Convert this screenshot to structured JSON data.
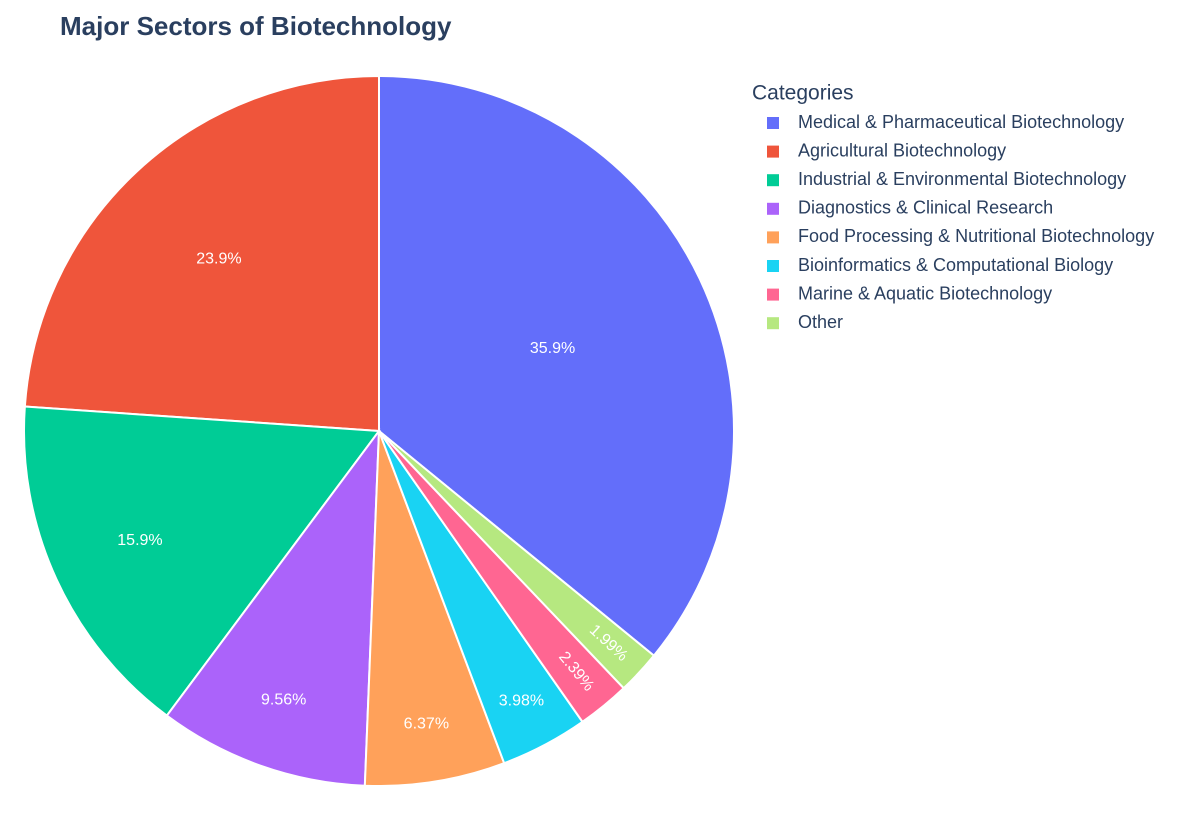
{
  "chart_data": {
    "type": "pie",
    "title": "Major Sectors of Biotechnology",
    "legend_title": "Categories",
    "categories": [
      "Medical & Pharmaceutical Biotechnology",
      "Agricultural Biotechnology",
      "Industrial & Environmental Biotechnology",
      "Diagnostics & Clinical Research",
      "Food Processing & Nutritional Biotechnology",
      "Bioinformatics & Computational Biology",
      "Marine & Aquatic Biotechnology",
      "Other"
    ],
    "values": [
      35.9,
      23.9,
      15.9,
      9.56,
      6.37,
      3.98,
      2.39,
      1.99
    ],
    "value_labels": [
      "35.9%",
      "23.9%",
      "15.9%",
      "9.56%",
      "6.37%",
      "3.98%",
      "2.39%",
      "1.99%"
    ],
    "colors": [
      "#636efa",
      "#ef553b",
      "#00cc96",
      "#ab63fa",
      "#ffa15a",
      "#19d3f3",
      "#ff6692",
      "#b6e880"
    ],
    "legend": "right"
  }
}
